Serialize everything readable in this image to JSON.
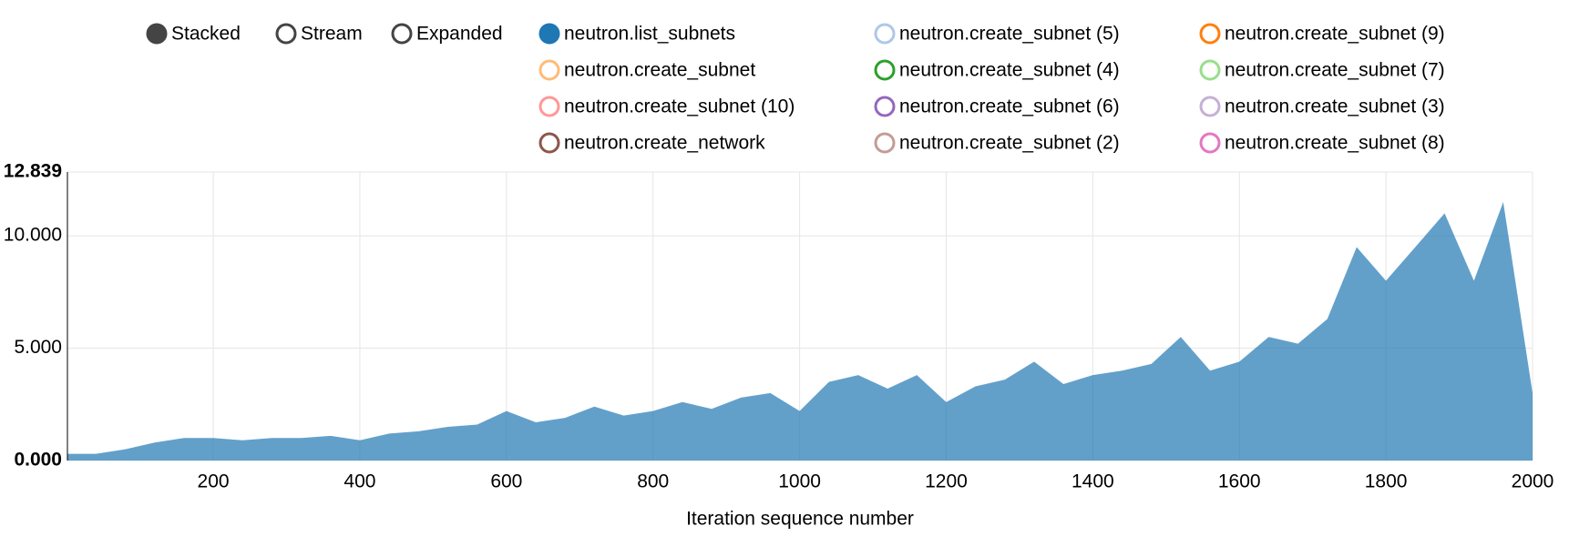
{
  "chart_data": {
    "type": "stacked-area",
    "controls": [
      {
        "label": "Stacked",
        "selected": true
      },
      {
        "label": "Stream",
        "selected": false
      },
      {
        "label": "Expanded",
        "selected": false
      }
    ],
    "x_label": "Iteration sequence number",
    "xlim": [
      1,
      2000
    ],
    "xticks": [
      200,
      400,
      600,
      800,
      1000,
      1200,
      1400,
      1600,
      1800,
      2000
    ],
    "ylim": [
      0,
      12.839
    ],
    "yticks": [
      {
        "value": 0,
        "label": "0.000"
      },
      {
        "value": 5,
        "label": "5.000"
      },
      {
        "value": 10,
        "label": "10.000"
      },
      {
        "value": 12.839,
        "label": "12.839"
      }
    ],
    "grid": true,
    "x": [
      1,
      40,
      80,
      120,
      160,
      200,
      240,
      280,
      320,
      360,
      400,
      440,
      480,
      520,
      560,
      600,
      640,
      680,
      720,
      760,
      800,
      840,
      880,
      920,
      960,
      1000,
      1040,
      1080,
      1120,
      1160,
      1200,
      1240,
      1280,
      1320,
      1360,
      1400,
      1440,
      1480,
      1520,
      1560,
      1600,
      1640,
      1680,
      1720,
      1760,
      1800,
      1840,
      1880,
      1920,
      1960,
      2000
    ],
    "series": [
      {
        "name": "neutron.list_subnets",
        "color": "#1f77b4",
        "disabled": false,
        "values": [
          0.3,
          0.3,
          0.5,
          0.8,
          1.0,
          1.0,
          0.9,
          1.0,
          1.0,
          1.1,
          0.9,
          1.2,
          1.3,
          1.5,
          1.6,
          2.2,
          1.7,
          1.9,
          2.4,
          2.0,
          2.2,
          2.6,
          2.3,
          2.8,
          3.0,
          2.2,
          3.5,
          3.8,
          3.2,
          3.8,
          2.6,
          3.3,
          3.6,
          4.4,
          3.4,
          3.8,
          4.0,
          4.3,
          5.5,
          4.0,
          4.4,
          5.5,
          5.2,
          6.3,
          9.5,
          8.0,
          9.5,
          11.0,
          8.0,
          11.5,
          3.0
        ]
      },
      {
        "name": "neutron.create_subnet (5)",
        "color": "#aec7e8",
        "disabled": true,
        "values": [
          0,
          0,
          0,
          0,
          0,
          0,
          0,
          0,
          0,
          0,
          0,
          0,
          0,
          0,
          0,
          0,
          0,
          0,
          0,
          0,
          0,
          0,
          0,
          0,
          0,
          0,
          0,
          0,
          0,
          0,
          0,
          0,
          0,
          0,
          0,
          0,
          0,
          0,
          0,
          0,
          0,
          0,
          0,
          0,
          0,
          0,
          0,
          0,
          0,
          0,
          0
        ]
      },
      {
        "name": "neutron.create_subnet (9)",
        "color": "#ff7f0e",
        "disabled": true,
        "values": [
          0,
          0,
          0,
          0,
          0,
          0,
          0,
          0,
          0,
          0,
          0,
          0,
          0,
          0,
          0,
          0,
          0,
          0,
          0,
          0,
          0,
          0,
          0,
          0,
          0,
          0,
          0,
          0,
          0,
          0,
          0,
          0,
          0,
          0,
          0,
          0,
          0,
          0,
          0,
          0,
          0,
          0,
          0,
          0,
          0,
          0,
          0,
          0,
          0,
          0,
          0
        ]
      },
      {
        "name": "neutron.create_subnet",
        "color": "#ffbb78",
        "disabled": true,
        "values": [
          0,
          0,
          0,
          0,
          0,
          0,
          0,
          0,
          0,
          0,
          0,
          0,
          0,
          0,
          0,
          0,
          0,
          0,
          0,
          0,
          0,
          0,
          0,
          0,
          0,
          0,
          0,
          0,
          0,
          0,
          0,
          0,
          0,
          0,
          0,
          0,
          0,
          0,
          0,
          0,
          0,
          0,
          0,
          0,
          0,
          0,
          0,
          0,
          0,
          0,
          0
        ]
      },
      {
        "name": "neutron.create_subnet (4)",
        "color": "#2ca02c",
        "disabled": true,
        "values": [
          0,
          0,
          0,
          0,
          0,
          0,
          0,
          0,
          0,
          0,
          0,
          0,
          0,
          0,
          0,
          0,
          0,
          0,
          0,
          0,
          0,
          0,
          0,
          0,
          0,
          0,
          0,
          0,
          0,
          0,
          0,
          0,
          0,
          0,
          0,
          0,
          0,
          0,
          0,
          0,
          0,
          0,
          0,
          0,
          0,
          0,
          0,
          0,
          0,
          0,
          0
        ]
      },
      {
        "name": "neutron.create_subnet (7)",
        "color": "#98df8a",
        "disabled": true,
        "values": [
          0,
          0,
          0,
          0,
          0,
          0,
          0,
          0,
          0,
          0,
          0,
          0,
          0,
          0,
          0,
          0,
          0,
          0,
          0,
          0,
          0,
          0,
          0,
          0,
          0,
          0,
          0,
          0,
          0,
          0,
          0,
          0,
          0,
          0,
          0,
          0,
          0,
          0,
          0,
          0,
          0,
          0,
          0,
          0,
          0,
          0,
          0,
          0,
          0,
          0,
          0
        ]
      },
      {
        "name": "neutron.create_subnet (10)",
        "color": "#ff9896",
        "disabled": true,
        "values": [
          0,
          0,
          0,
          0,
          0,
          0,
          0,
          0,
          0,
          0,
          0,
          0,
          0,
          0,
          0,
          0,
          0,
          0,
          0,
          0,
          0,
          0,
          0,
          0,
          0,
          0,
          0,
          0,
          0,
          0,
          0,
          0,
          0,
          0,
          0,
          0,
          0,
          0,
          0,
          0,
          0,
          0,
          0,
          0,
          0,
          0,
          0,
          0,
          0,
          0,
          0
        ]
      },
      {
        "name": "neutron.create_subnet (6)",
        "color": "#9467bd",
        "disabled": true,
        "values": [
          0,
          0,
          0,
          0,
          0,
          0,
          0,
          0,
          0,
          0,
          0,
          0,
          0,
          0,
          0,
          0,
          0,
          0,
          0,
          0,
          0,
          0,
          0,
          0,
          0,
          0,
          0,
          0,
          0,
          0,
          0,
          0,
          0,
          0,
          0,
          0,
          0,
          0,
          0,
          0,
          0,
          0,
          0,
          0,
          0,
          0,
          0,
          0,
          0,
          0,
          0
        ]
      },
      {
        "name": "neutron.create_subnet (3)",
        "color": "#c5b0d5",
        "disabled": true,
        "values": [
          0,
          0,
          0,
          0,
          0,
          0,
          0,
          0,
          0,
          0,
          0,
          0,
          0,
          0,
          0,
          0,
          0,
          0,
          0,
          0,
          0,
          0,
          0,
          0,
          0,
          0,
          0,
          0,
          0,
          0,
          0,
          0,
          0,
          0,
          0,
          0,
          0,
          0,
          0,
          0,
          0,
          0,
          0,
          0,
          0,
          0,
          0,
          0,
          0,
          0,
          0
        ]
      },
      {
        "name": "neutron.create_network",
        "color": "#8c564b",
        "disabled": true,
        "values": [
          0,
          0,
          0,
          0,
          0,
          0,
          0,
          0,
          0,
          0,
          0,
          0,
          0,
          0,
          0,
          0,
          0,
          0,
          0,
          0,
          0,
          0,
          0,
          0,
          0,
          0,
          0,
          0,
          0,
          0,
          0,
          0,
          0,
          0,
          0,
          0,
          0,
          0,
          0,
          0,
          0,
          0,
          0,
          0,
          0,
          0,
          0,
          0,
          0,
          0,
          0
        ]
      },
      {
        "name": "neutron.create_subnet (2)",
        "color": "#c49c94",
        "disabled": true,
        "values": [
          0,
          0,
          0,
          0,
          0,
          0,
          0,
          0,
          0,
          0,
          0,
          0,
          0,
          0,
          0,
          0,
          0,
          0,
          0,
          0,
          0,
          0,
          0,
          0,
          0,
          0,
          0,
          0,
          0,
          0,
          0,
          0,
          0,
          0,
          0,
          0,
          0,
          0,
          0,
          0,
          0,
          0,
          0,
          0,
          0,
          0,
          0,
          0,
          0,
          0,
          0
        ]
      },
      {
        "name": "neutron.create_subnet (8)",
        "color": "#e377c2",
        "disabled": true,
        "values": [
          0,
          0,
          0,
          0,
          0,
          0,
          0,
          0,
          0,
          0,
          0,
          0,
          0,
          0,
          0,
          0,
          0,
          0,
          0,
          0,
          0,
          0,
          0,
          0,
          0,
          0,
          0,
          0,
          0,
          0,
          0,
          0,
          0,
          0,
          0,
          0,
          0,
          0,
          0,
          0,
          0,
          0,
          0,
          0,
          0,
          0,
          0,
          0,
          0,
          0,
          0
        ]
      }
    ]
  }
}
